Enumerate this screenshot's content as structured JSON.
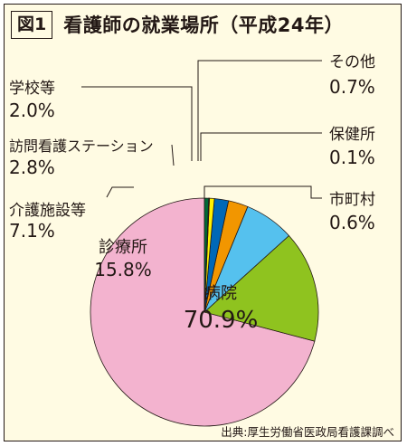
{
  "figure_label": "図1",
  "title": "看護師の就業場所（平成24年）",
  "source": "出典:厚生労働省医政局看護課調べ",
  "chart_data": {
    "type": "pie",
    "title": "看護師の就業場所（平成24年）",
    "slices": [
      {
        "name": "病院",
        "value": 70.9,
        "label": "70.9%",
        "color": "#f3b3cf"
      },
      {
        "name": "診療所",
        "value": 15.8,
        "label": "15.8%",
        "color": "#8fc31f"
      },
      {
        "name": "介護施設等",
        "value": 7.1,
        "label": "7.1%",
        "color": "#55c1ee"
      },
      {
        "name": "訪問看護ステーション",
        "value": 2.8,
        "label": "2.8%",
        "color": "#f29600"
      },
      {
        "name": "学校等",
        "value": 2.0,
        "label": "2.0%",
        "color": "#0068b7"
      },
      {
        "name": "その他",
        "value": 0.7,
        "label": "0.7%",
        "color": "#fff100"
      },
      {
        "name": "保健所",
        "value": 0.1,
        "label": "0.1%",
        "color": "#ffffff"
      },
      {
        "name": "市町村",
        "value": 0.6,
        "label": "0.6%",
        "color": "#006837"
      }
    ]
  }
}
